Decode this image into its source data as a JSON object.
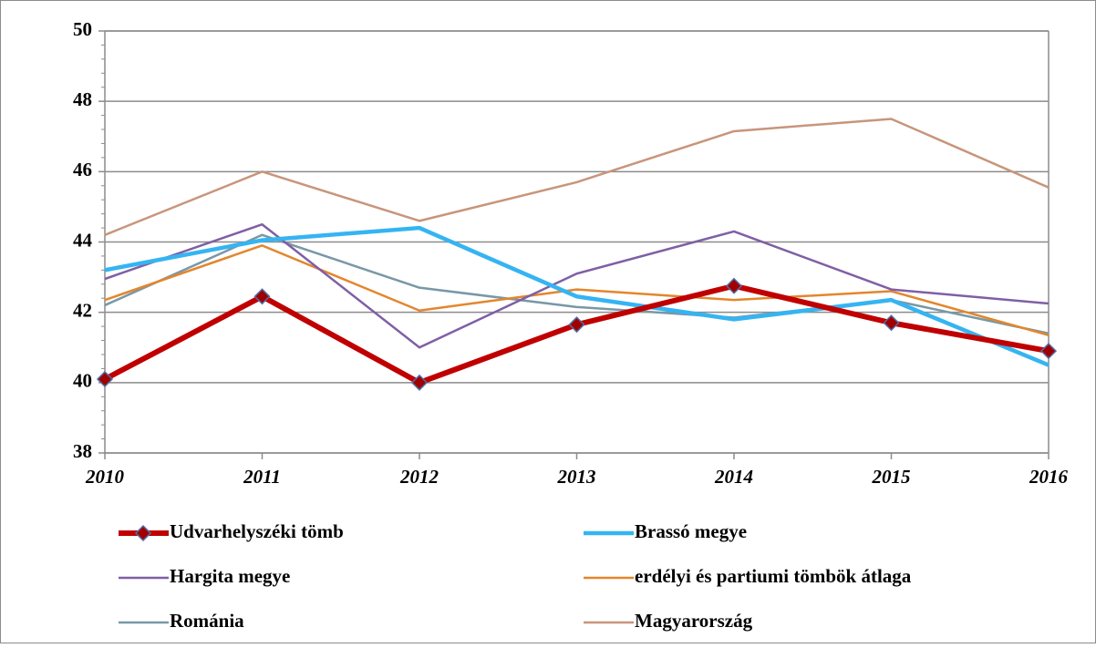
{
  "chart_data": {
    "type": "line",
    "x": [
      2010,
      2011,
      2012,
      2013,
      2014,
      2015,
      2016
    ],
    "xlim": [
      2010,
      2016
    ],
    "ylim": [
      38,
      50
    ],
    "yticks": [
      38,
      40,
      42,
      44,
      46,
      48,
      50
    ],
    "grid": true,
    "series": [
      {
        "name": "Udvarhelyszéki tömb",
        "color": "#c00000",
        "marker": "diamond",
        "values": [
          40.1,
          42.45,
          40.0,
          41.65,
          42.75,
          41.7,
          40.9
        ]
      },
      {
        "name": "Brassó megye",
        "color": "#35b4f2",
        "values": [
          43.2,
          44.05,
          44.4,
          42.45,
          41.8,
          42.35,
          40.5
        ]
      },
      {
        "name": "Hargita megye",
        "color": "#7f5fa5",
        "values": [
          42.95,
          44.5,
          41.0,
          43.1,
          44.3,
          42.65,
          42.25
        ]
      },
      {
        "name": "erdélyi és partiumi tömbök átlaga",
        "color": "#e3862d",
        "values": [
          42.35,
          43.9,
          42.05,
          42.65,
          42.35,
          42.6,
          41.35
        ]
      },
      {
        "name": "Románia",
        "color": "#7898a6",
        "values": [
          42.2,
          44.2,
          42.7,
          42.15,
          41.85,
          42.35,
          41.4
        ]
      },
      {
        "name": "Magyarország",
        "color": "#c8957a",
        "values": [
          44.2,
          46.0,
          44.6,
          45.7,
          47.15,
          47.5,
          45.55
        ]
      }
    ]
  }
}
